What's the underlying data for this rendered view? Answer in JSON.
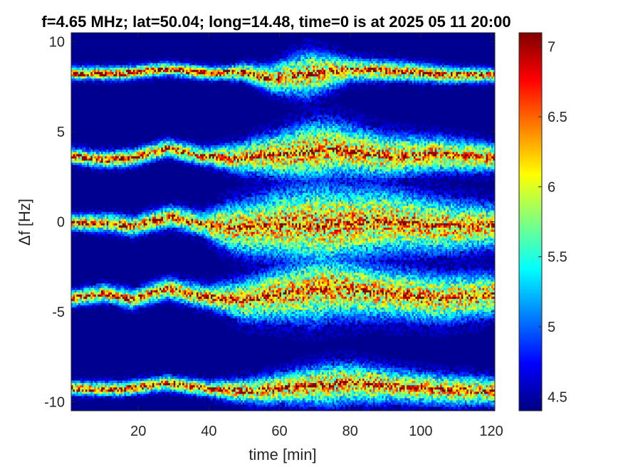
{
  "chart_data": {
    "type": "heatmap",
    "title": "f=4.65 MHz;  lat=50.04; long=14.48, time=0 is at 2025 05 11 20:00",
    "xlabel": "time [min]",
    "ylabel": "Δf [Hz]",
    "xlim": [
      1,
      121
    ],
    "ylim": [
      -10.5,
      10.5
    ],
    "x_ticks": [
      {
        "value": 20,
        "label": "20"
      },
      {
        "value": 40,
        "label": "40"
      },
      {
        "value": 60,
        "label": "60"
      },
      {
        "value": 80,
        "label": "80"
      },
      {
        "value": 100,
        "label": "100"
      },
      {
        "value": 120,
        "label": "120"
      }
    ],
    "y_ticks": [
      {
        "value": 10,
        "label": "10"
      },
      {
        "value": 5,
        "label": "5"
      },
      {
        "value": 0,
        "label": "0"
      },
      {
        "value": -5,
        "label": "-5"
      },
      {
        "value": -10,
        "label": "-10"
      }
    ],
    "colorbar": {
      "range": [
        4.4,
        7.1
      ],
      "colormap": "jet",
      "ticks": [
        {
          "value": 4.5,
          "label": "4.5"
        },
        {
          "value": 5,
          "label": "5"
        },
        {
          "value": 5.5,
          "label": "5.5"
        },
        {
          "value": 6,
          "label": "6"
        },
        {
          "value": 6.5,
          "label": "6.5"
        },
        {
          "value": 7,
          "label": "7"
        }
      ]
    },
    "background_value": 4.5,
    "bands": [
      {
        "center_hz": 8.2,
        "curve": [
          [
            1,
            8.2
          ],
          [
            15,
            8.2
          ],
          [
            28,
            8.45
          ],
          [
            40,
            8.2
          ],
          [
            50,
            8.25
          ],
          [
            57,
            7.9
          ],
          [
            65,
            8.1
          ],
          [
            80,
            8.4
          ],
          [
            95,
            8.3
          ],
          [
            108,
            8.1
          ],
          [
            121,
            8.1
          ]
        ],
        "spread": [
          [
            1,
            0.3
          ],
          [
            45,
            0.3
          ],
          [
            55,
            0.5
          ],
          [
            68,
            1.0
          ],
          [
            80,
            0.5
          ],
          [
            100,
            0.4
          ],
          [
            121,
            0.3
          ]
        ]
      },
      {
        "center_hz": 3.6,
        "curve": [
          [
            1,
            3.6
          ],
          [
            10,
            3.4
          ],
          [
            18,
            3.5
          ],
          [
            28,
            4.05
          ],
          [
            38,
            3.6
          ],
          [
            48,
            3.5
          ],
          [
            60,
            3.7
          ],
          [
            75,
            4.0
          ],
          [
            90,
            3.6
          ],
          [
            105,
            3.7
          ],
          [
            121,
            3.5
          ]
        ],
        "spread": [
          [
            1,
            0.35
          ],
          [
            40,
            0.4
          ],
          [
            50,
            0.7
          ],
          [
            70,
            1.3
          ],
          [
            85,
            1.0
          ],
          [
            100,
            0.8
          ],
          [
            121,
            0.6
          ]
        ]
      },
      {
        "center_hz": -0.1,
        "curve": [
          [
            1,
            -0.1
          ],
          [
            12,
            -0.1
          ],
          [
            18,
            -0.3
          ],
          [
            29,
            0.25
          ],
          [
            38,
            -0.2
          ],
          [
            50,
            -0.4
          ],
          [
            60,
            -0.2
          ],
          [
            75,
            -0.2
          ],
          [
            90,
            0.0
          ],
          [
            105,
            -0.3
          ],
          [
            121,
            -0.3
          ]
        ],
        "spread": [
          [
            1,
            0.35
          ],
          [
            38,
            0.5
          ],
          [
            45,
            1.0
          ],
          [
            70,
            1.8
          ],
          [
            90,
            1.4
          ],
          [
            110,
            1.1
          ],
          [
            121,
            0.9
          ]
        ]
      },
      {
        "center_hz": -4.3,
        "curve": [
          [
            1,
            -4.3
          ],
          [
            10,
            -4.0
          ],
          [
            18,
            -4.35
          ],
          [
            28,
            -3.75
          ],
          [
            38,
            -4.2
          ],
          [
            50,
            -4.4
          ],
          [
            62,
            -4.0
          ],
          [
            75,
            -3.7
          ],
          [
            90,
            -4.0
          ],
          [
            105,
            -4.3
          ],
          [
            121,
            -4.1
          ]
        ],
        "spread": [
          [
            1,
            0.35
          ],
          [
            40,
            0.5
          ],
          [
            50,
            0.9
          ],
          [
            70,
            1.4
          ],
          [
            90,
            1.1
          ],
          [
            110,
            1.0
          ],
          [
            121,
            0.9
          ]
        ]
      },
      {
        "center_hz": -9.3,
        "curve": [
          [
            1,
            -9.3
          ],
          [
            15,
            -9.35
          ],
          [
            28,
            -9.0
          ],
          [
            40,
            -9.35
          ],
          [
            52,
            -9.45
          ],
          [
            65,
            -9.2
          ],
          [
            80,
            -9.0
          ],
          [
            95,
            -9.2
          ],
          [
            108,
            -9.4
          ],
          [
            121,
            -9.45
          ]
        ],
        "spread": [
          [
            1,
            0.3
          ],
          [
            40,
            0.35
          ],
          [
            55,
            0.6
          ],
          [
            75,
            0.9
          ],
          [
            95,
            0.7
          ],
          [
            121,
            0.6
          ]
        ]
      }
    ],
    "grid": false
  }
}
